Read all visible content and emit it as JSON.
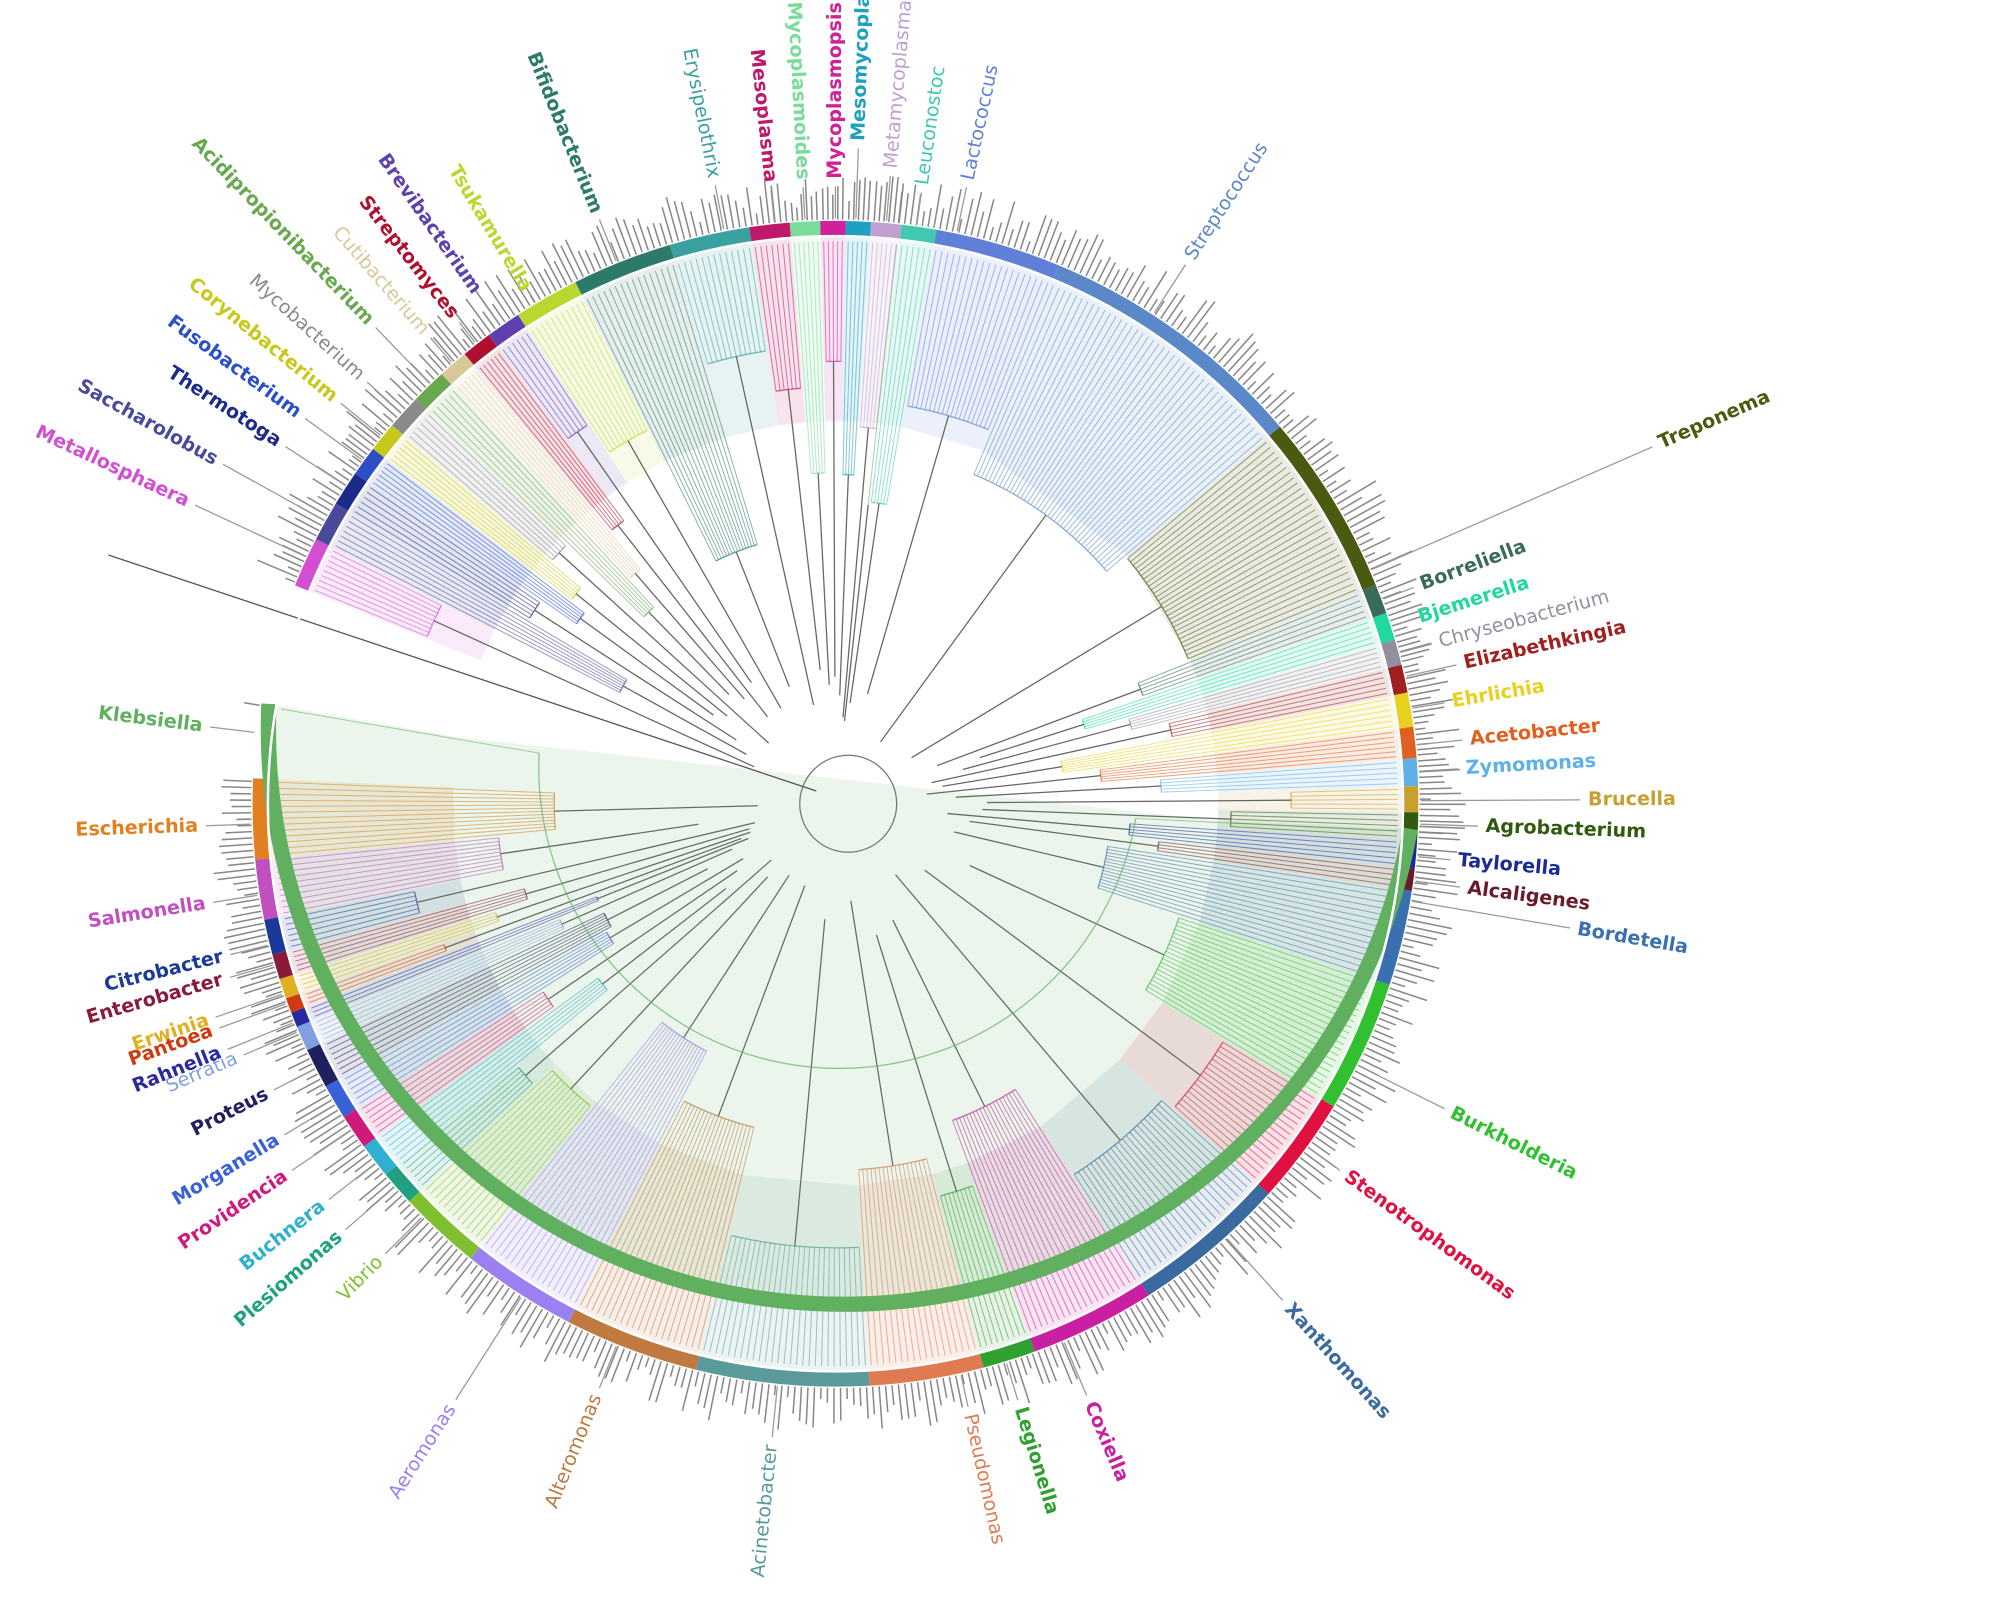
{
  "tree": {
    "labels": [
      {
        "name": "Metallosphaera",
        "color": "#d24fd2"
      },
      {
        "name": "Saccharolobus",
        "color": "#4a4a9a"
      },
      {
        "name": "Thermotoga",
        "color": "#1c2a8a"
      },
      {
        "name": "Fusobacterium",
        "color": "#2c4fc8"
      },
      {
        "name": "Corynebacterium",
        "color": "#c8c81a"
      },
      {
        "name": "Mycobacterium",
        "color": "#8a8a8a"
      },
      {
        "name": "Acidipropionibacterium",
        "color": "#6aa84f"
      },
      {
        "name": "Cutibacterium",
        "color": "#d8c898"
      },
      {
        "name": "Streptomyces",
        "color": "#b01030"
      },
      {
        "name": "Brevibacterium",
        "color": "#6040b0"
      },
      {
        "name": "Tsukamurella",
        "color": "#b8d830"
      },
      {
        "name": "Bifidobacterium",
        "color": "#2e7a6a"
      },
      {
        "name": "Erysipelothrix",
        "color": "#3aa0a0"
      },
      {
        "name": "Mesoplasma",
        "color": "#c0186a"
      },
      {
        "name": "Mycoplasmoides",
        "color": "#7adc9a"
      },
      {
        "name": "Mycoplasmopsis",
        "color": "#d0209a"
      },
      {
        "name": "Mesomycoplasma",
        "color": "#20a0c0"
      },
      {
        "name": "Metamycoplasma",
        "color": "#c0a0d0"
      },
      {
        "name": "Leuconostoc",
        "color": "#40c8b0"
      },
      {
        "name": "Lactococcus",
        "color": "#6080d8"
      },
      {
        "name": "Streptococcus",
        "color": "#5a88c8"
      },
      {
        "name": "Treponema",
        "color": "#4a5a10"
      },
      {
        "name": "Borreliella",
        "color": "#3a6a5a"
      },
      {
        "name": "Bjemerella",
        "color": "#20d8a0"
      },
      {
        "name": "Chryseobacterium",
        "color": "#9090a0"
      },
      {
        "name": "Elizabethkingia",
        "color": "#a02020"
      },
      {
        "name": "Ehrlichia",
        "color": "#e8d020"
      },
      {
        "name": "Acetobacter",
        "color": "#e06020"
      },
      {
        "name": "Zymomonas",
        "color": "#60b0e8"
      },
      {
        "name": "Brucella",
        "color": "#c8a030"
      },
      {
        "name": "Agrobacterium",
        "color": "#305a10"
      },
      {
        "name": "Taylorella",
        "color": "#1a2a9a"
      },
      {
        "name": "Alcaligenes",
        "color": "#6a1a2a"
      },
      {
        "name": "Bordetella",
        "color": "#3a70b0"
      },
      {
        "name": "Burkholderia",
        "color": "#30c030"
      },
      {
        "name": "Stenotrophomonas",
        "color": "#e01040"
      },
      {
        "name": "Xanthomonas",
        "color": "#3a6aa0"
      },
      {
        "name": "Coxiella",
        "color": "#c820a0"
      },
      {
        "name": "Legionella",
        "color": "#30a030"
      },
      {
        "name": "Pseudomonas",
        "color": "#e07a50"
      },
      {
        "name": "Acinetobacter",
        "color": "#5a9a9a"
      },
      {
        "name": "Alteromonas",
        "color": "#c07a40"
      },
      {
        "name": "Aeromonas",
        "color": "#9a80f0"
      },
      {
        "name": "Vibrio",
        "color": "#80c030"
      },
      {
        "name": "Plesiomonas",
        "color": "#20a080"
      },
      {
        "name": "Buchnera",
        "color": "#30b0d0"
      },
      {
        "name": "Providencia",
        "color": "#d01a7a"
      },
      {
        "name": "Morganella",
        "color": "#3a60d8"
      },
      {
        "name": "Proteus",
        "color": "#202060"
      },
      {
        "name": "Serratia",
        "color": "#80a0e0"
      },
      {
        "name": "Rahnella",
        "color": "#2a2aa0"
      },
      {
        "name": "Pantoea",
        "color": "#d03a10"
      },
      {
        "name": "Erwinia",
        "color": "#e0b020"
      },
      {
        "name": "Enterobacter",
        "color": "#8a1a3a"
      },
      {
        "name": "Citrobacter",
        "color": "#1a3a9a"
      },
      {
        "name": "Salmonella",
        "color": "#c050c0"
      },
      {
        "name": "Escherichia",
        "color": "#e08020"
      },
      {
        "name": "Klebsiella",
        "color": "#60b060"
      }
    ]
  }
}
